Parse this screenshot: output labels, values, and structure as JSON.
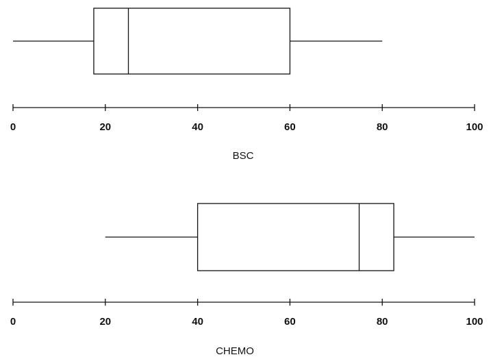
{
  "chart_data": [
    {
      "type": "boxplot",
      "xlabel": "BSC",
      "xlim": [
        0,
        100
      ],
      "xticks": [
        "0",
        "20",
        "40",
        "60",
        "80",
        "100"
      ],
      "box": {
        "whisker_low": 0,
        "q1": 17.5,
        "median": 25,
        "q3": 60,
        "whisker_high": 80
      },
      "grid": false
    },
    {
      "type": "boxplot",
      "xlabel": "CHEMO",
      "xlim": [
        0,
        100
      ],
      "xticks": [
        "0",
        "20",
        "40",
        "60",
        "80",
        "100"
      ],
      "box": {
        "whisker_low": 20,
        "q1": 40,
        "median": 75,
        "q3": 82.5,
        "whisker_high": 100
      },
      "grid": false
    }
  ]
}
